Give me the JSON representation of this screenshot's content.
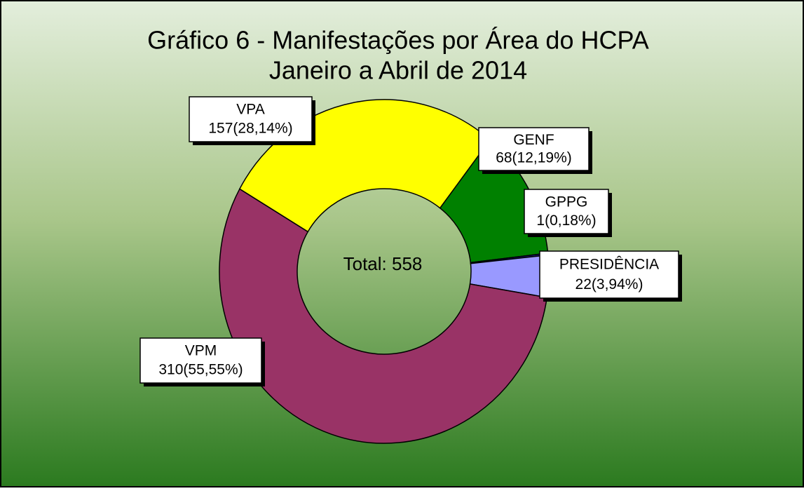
{
  "chart_data": {
    "type": "donut",
    "title": "Gráfico 6 - Manifestações por Área do HCPA",
    "subtitle": "Janeiro a Abril de 2014",
    "center_label": "Total: 558",
    "categories": [
      "GENF",
      "GPPG",
      "PRESIDÊNCIA",
      "VPM",
      "VPA"
    ],
    "values": [
      68,
      1,
      22,
      310,
      157
    ],
    "value_labels": [
      "68(12,19%)",
      "1(0,18%)",
      "22(3,94%)",
      "310(55,55%)",
      "157(28,14%)"
    ],
    "colors": [
      "#008000",
      "#1a1a80",
      "#9999ff",
      "#993366",
      "#ffff00"
    ]
  }
}
